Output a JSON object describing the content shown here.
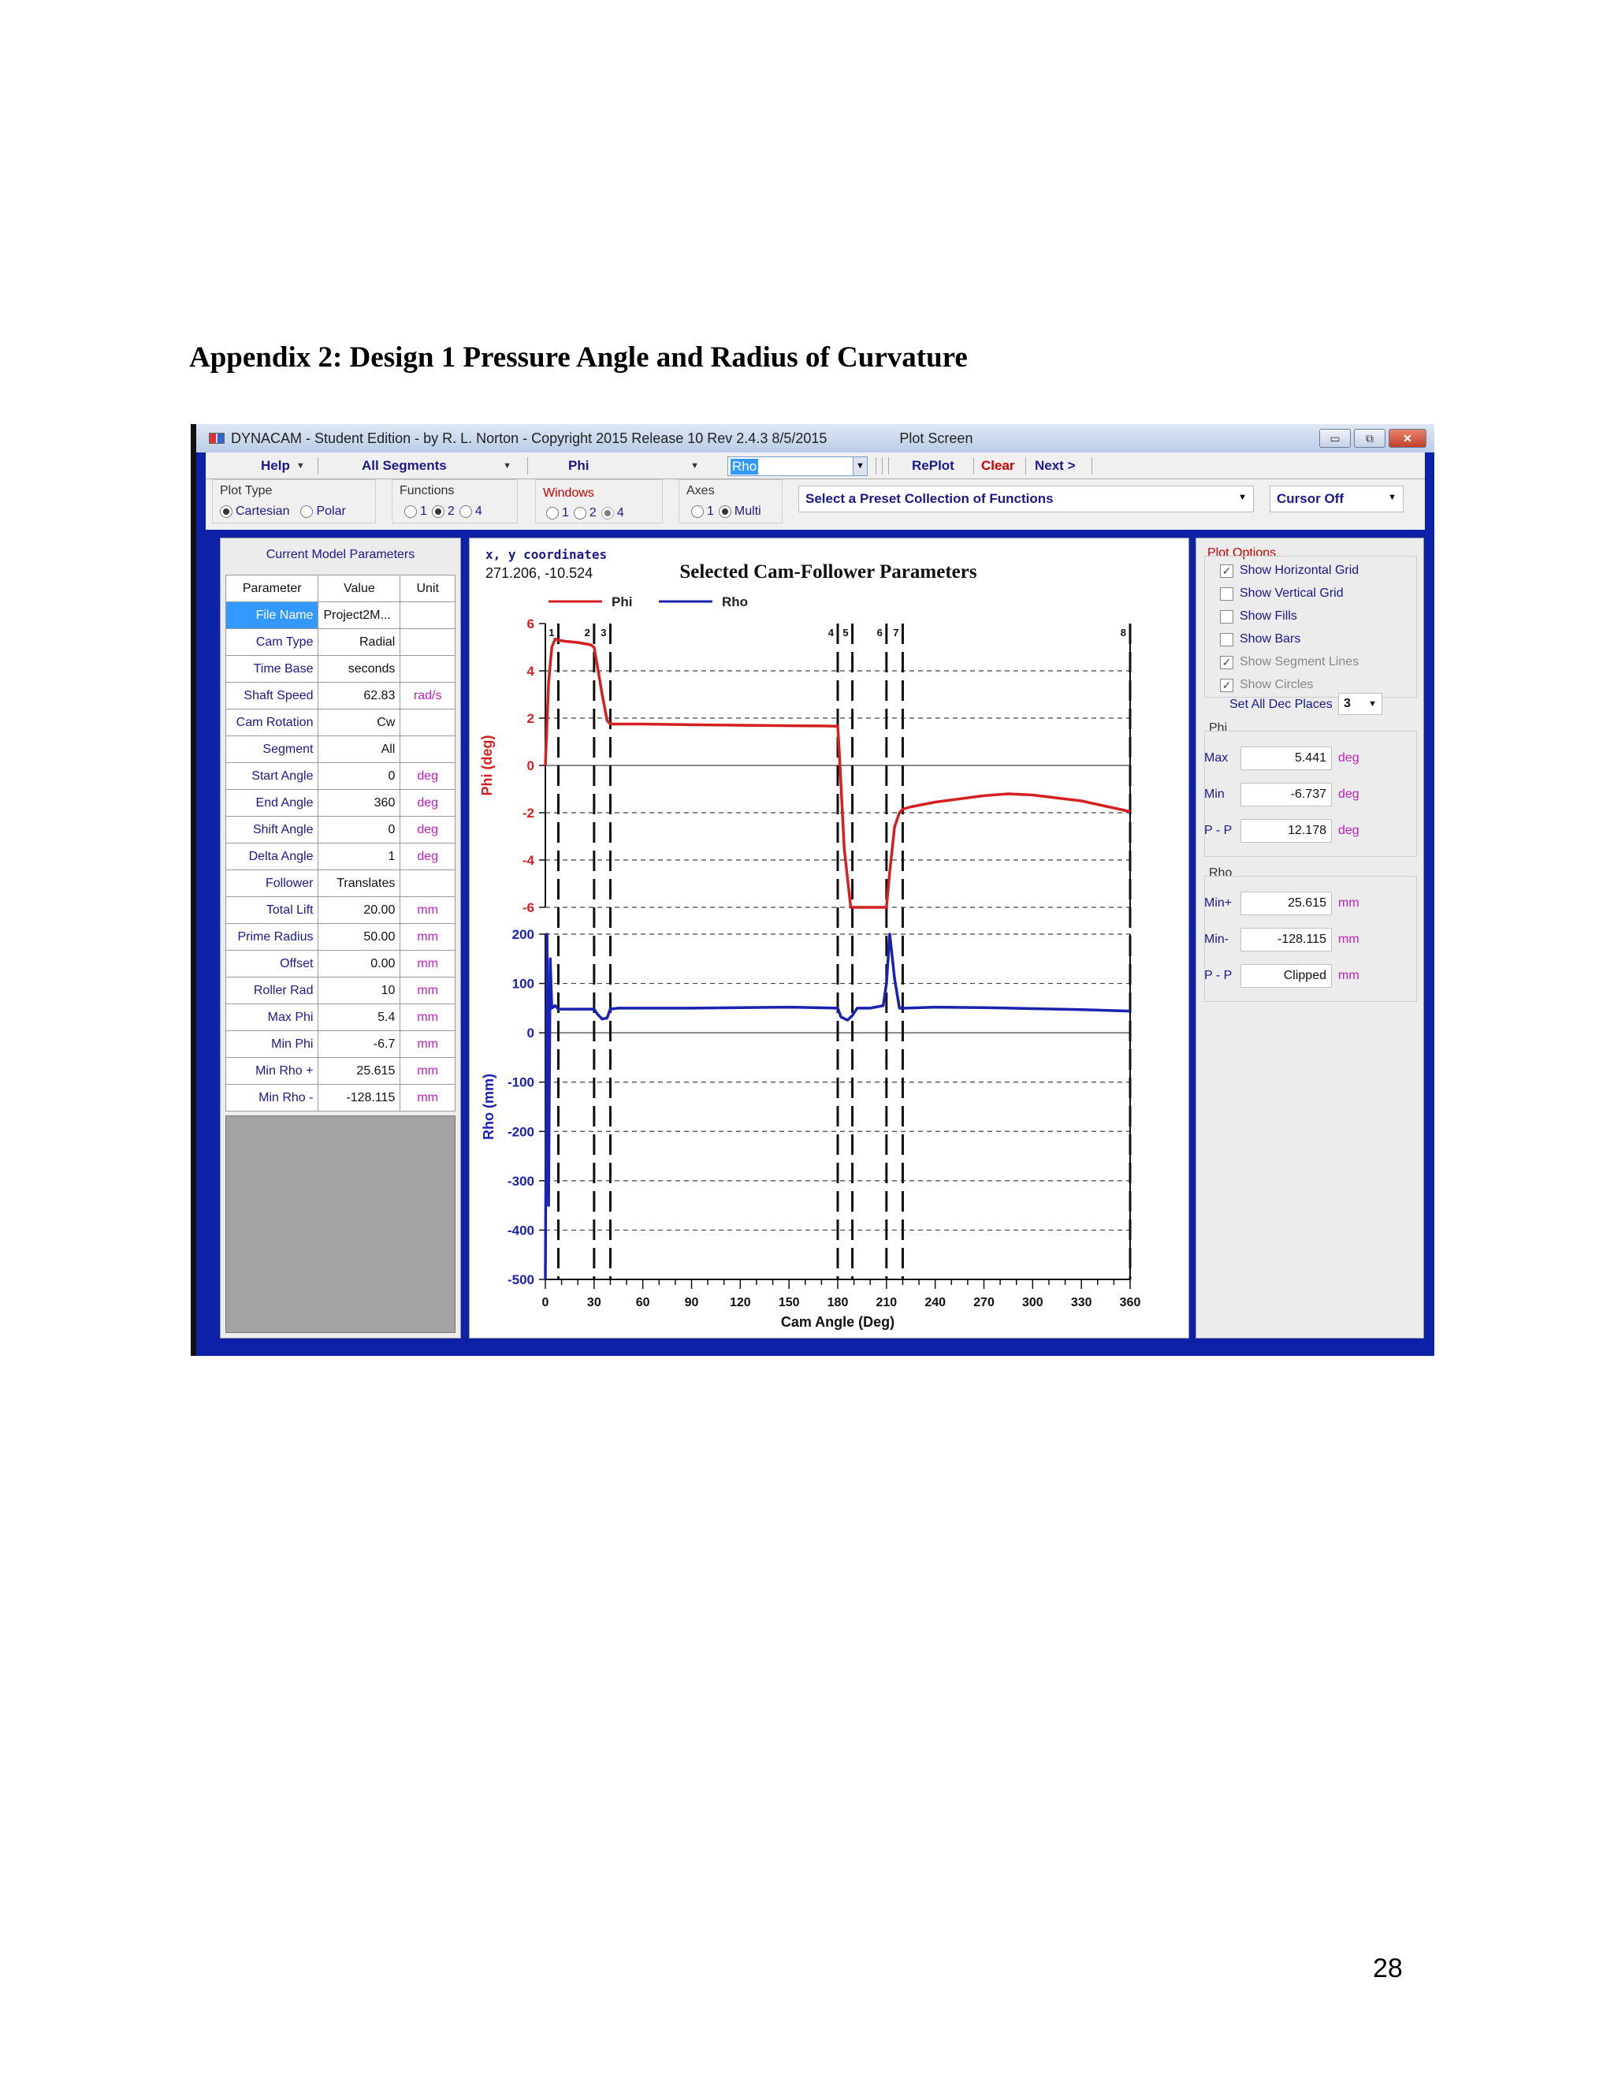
{
  "document": {
    "heading": "Appendix 2: Design 1 Pressure Angle and Radius of Curvature",
    "page_number": "28"
  },
  "window": {
    "title": "DYNACAM - Student Edition  - by R. L. Norton - Copyright 2015 Release 10  Rev 2.4.3  8/5/2015",
    "subtitle": "Plot Screen",
    "buttons": [
      "▭",
      "⧉",
      "✕"
    ]
  },
  "toolbar": {
    "help": "Help",
    "segments": "All Segments",
    "func1": "Phi",
    "func2": "Rho",
    "replot": "RePlot",
    "clear": "Clear",
    "next": "Next >"
  },
  "options": {
    "plot_type_label": "Plot Type",
    "plot_types": [
      "Cartesian",
      "Polar"
    ],
    "functions_label": "Functions",
    "functions": [
      "1",
      "2",
      "4"
    ],
    "windows_label": "Windows",
    "windows": [
      "1",
      "2",
      "4"
    ],
    "axes_label": "Axes",
    "axes": [
      "1",
      "Multi"
    ],
    "preset": "Select a Preset Collection of Functions",
    "cursor": "Cursor Off"
  },
  "params": {
    "title": "Current Model Parameters",
    "headers": [
      "Parameter",
      "Value",
      "Unit"
    ],
    "rows": [
      {
        "name": "File Name",
        "value": "Project2M...",
        "unit": ""
      },
      {
        "name": "Cam Type",
        "value": "Radial",
        "unit": ""
      },
      {
        "name": "Time Base",
        "value": "seconds",
        "unit": ""
      },
      {
        "name": "Shaft Speed",
        "value": "62.83",
        "unit": "rad/s"
      },
      {
        "name": "Cam Rotation",
        "value": "Cw",
        "unit": ""
      },
      {
        "name": "Segment",
        "value": "All",
        "unit": ""
      },
      {
        "name": "Start Angle",
        "value": "0",
        "unit": "deg"
      },
      {
        "name": "End Angle",
        "value": "360",
        "unit": "deg"
      },
      {
        "name": "Shift Angle",
        "value": "0",
        "unit": "deg"
      },
      {
        "name": "Delta Angle",
        "value": "1",
        "unit": "deg"
      },
      {
        "name": "Follower",
        "value": "Translates",
        "unit": ""
      },
      {
        "name": "Total Lift",
        "value": "20.00",
        "unit": "mm"
      },
      {
        "name": "Prime Radius",
        "value": "50.00",
        "unit": "mm"
      },
      {
        "name": "Offset",
        "value": "0.00",
        "unit": "mm"
      },
      {
        "name": "Roller Rad",
        "value": "10",
        "unit": "mm"
      },
      {
        "name": "Max Phi",
        "value": "5.4",
        "unit": "mm"
      },
      {
        "name": "Min Phi",
        "value": "-6.7",
        "unit": "mm"
      },
      {
        "name": "Min Rho +",
        "value": "25.615",
        "unit": "mm"
      },
      {
        "name": "Min Rho -",
        "value": "-128.115",
        "unit": "mm"
      }
    ]
  },
  "plot_header": {
    "coords_label": "x, y coordinates",
    "coords_value": "271.206, -10.524"
  },
  "right": {
    "plot_options_title": "Plot Options",
    "checks": [
      {
        "label": "Show Horizontal Grid",
        "checked": true,
        "enabled": true
      },
      {
        "label": "Show Vertical Grid",
        "checked": false,
        "enabled": true
      },
      {
        "label": "Show Fills",
        "checked": false,
        "enabled": true
      },
      {
        "label": "Show Bars",
        "checked": false,
        "enabled": true
      },
      {
        "label": "Show Segment Lines",
        "checked": true,
        "enabled": false
      },
      {
        "label": "Show Circles",
        "checked": true,
        "enabled": false
      }
    ],
    "dec_label": "Set All Dec Places",
    "dec_value": "3",
    "phi_title": "Phi",
    "phi": [
      {
        "label": "Max",
        "value": "5.441",
        "unit": "deg"
      },
      {
        "label": "Min",
        "value": "-6.737",
        "unit": "deg"
      },
      {
        "label": "P - P",
        "value": "12.178",
        "unit": "deg"
      }
    ],
    "rho_title": "Rho",
    "rho": [
      {
        "label": "Min+",
        "value": "25.615",
        "unit": "mm"
      },
      {
        "label": "Min-",
        "value": "-128.115",
        "unit": "mm"
      },
      {
        "label": "P - P",
        "value": "Clipped",
        "unit": "mm"
      }
    ]
  },
  "chart_data": {
    "type": "line",
    "title": "Selected Cam-Follower Parameters",
    "xlabel": "Cam Angle (Deg)",
    "xlim": [
      0,
      360
    ],
    "xticks": [
      0,
      30,
      60,
      90,
      120,
      150,
      180,
      210,
      240,
      270,
      300,
      330,
      360
    ],
    "segment_lines": [
      {
        "label": "1",
        "x": 8
      },
      {
        "label": "2",
        "x": 30
      },
      {
        "label": "3",
        "x": 40
      },
      {
        "label": "4",
        "x": 180
      },
      {
        "label": "5",
        "x": 189
      },
      {
        "label": "6",
        "x": 210
      },
      {
        "label": "7",
        "x": 220
      },
      {
        "label": "8",
        "x": 360
      }
    ],
    "colors": {
      "phi": "#d42020",
      "rho": "#1a22b0"
    },
    "axes": [
      {
        "name": "phi",
        "ylabel": "Phi (deg)",
        "ylim": [
          -6,
          6
        ],
        "yticks": [
          6,
          4,
          2,
          0,
          -2,
          -4,
          -6
        ],
        "grid": true
      },
      {
        "name": "rho",
        "ylabel": "Rho (mm)",
        "ylim": [
          -500,
          200
        ],
        "yticks": [
          200,
          100,
          0,
          -100,
          -200,
          -300,
          -400,
          -500
        ],
        "grid": true
      }
    ],
    "series": [
      {
        "name": "Phi",
        "axis": "phi",
        "x": [
          0,
          2,
          4,
          6,
          8,
          12,
          20,
          28,
          30,
          32,
          35,
          38,
          40,
          45,
          60,
          90,
          120,
          150,
          170,
          180,
          181,
          184,
          188,
          189,
          200,
          210,
          212,
          215,
          218,
          220,
          225,
          240,
          270,
          285,
          300,
          330,
          360
        ],
        "y": [
          0,
          3.5,
          5.0,
          5.35,
          5.3,
          5.25,
          5.2,
          5.1,
          5.0,
          4.2,
          3.0,
          1.9,
          1.75,
          1.75,
          1.75,
          1.72,
          1.7,
          1.68,
          1.67,
          1.66,
          0.5,
          -3.5,
          -6.2,
          -6.45,
          -6.55,
          -6.737,
          -4.5,
          -2.6,
          -2.0,
          -1.85,
          -1.75,
          -1.55,
          -1.28,
          -1.2,
          -1.25,
          -1.5,
          -1.95
        ]
      },
      {
        "name": "Rho",
        "axis": "rho",
        "x": [
          0,
          1,
          2,
          3,
          4,
          6,
          8,
          12,
          20,
          30,
          32,
          35,
          38,
          40,
          45,
          60,
          90,
          120,
          150,
          180,
          182,
          186,
          189,
          192,
          200,
          208,
          210,
          212,
          215,
          218,
          222,
          240,
          270,
          300,
          330,
          360
        ],
        "y": [
          -500,
          200,
          -350,
          150,
          50,
          55,
          48,
          48,
          48,
          48,
          38,
          28,
          30,
          48,
          50,
          50,
          50,
          51,
          52,
          50,
          32,
          25.615,
          35,
          50,
          50,
          55,
          100,
          220,
          110,
          50,
          50,
          52,
          51,
          49,
          47,
          44
        ]
      }
    ]
  }
}
